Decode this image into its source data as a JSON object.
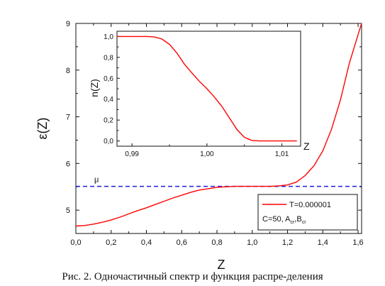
{
  "chart_data": [
    {
      "type": "line",
      "xlabel": "Z",
      "ylabel": "ε(Z)",
      "xlim": [
        0.0,
        1.62
      ],
      "ylim": [
        4.5,
        9.0
      ],
      "xticks": [
        "0,0",
        "0,2",
        "0,4",
        "0,6",
        "0,8",
        "1,0",
        "1,2",
        "1,4",
        "1,6"
      ],
      "yticks": [
        "5",
        "6",
        "7",
        "8",
        "9"
      ],
      "series": [
        {
          "name": "T=0.000001",
          "color": "#ff0000",
          "x": [
            0.0,
            0.05,
            0.1,
            0.15,
            0.2,
            0.25,
            0.3,
            0.35,
            0.4,
            0.45,
            0.5,
            0.55,
            0.6,
            0.65,
            0.7,
            0.75,
            0.8,
            0.85,
            0.9,
            0.95,
            1.0,
            1.05,
            1.1,
            1.15,
            1.2,
            1.25,
            1.3,
            1.35,
            1.4,
            1.45,
            1.5,
            1.55,
            1.6,
            1.62
          ],
          "y": [
            4.66,
            4.67,
            4.7,
            4.74,
            4.79,
            4.85,
            4.92,
            4.99,
            5.05,
            5.12,
            5.19,
            5.26,
            5.32,
            5.38,
            5.43,
            5.46,
            5.49,
            5.5,
            5.51,
            5.51,
            5.51,
            5.51,
            5.51,
            5.52,
            5.54,
            5.6,
            5.74,
            5.95,
            6.27,
            6.74,
            7.36,
            8.14,
            8.76,
            9.0
          ]
        }
      ],
      "hline": {
        "label": "μ",
        "y": 5.51,
        "color": "#1f1fd6"
      },
      "legend": {
        "position": "bottom-right",
        "entry": "T=0.000001",
        "note": "C=50, A",
        "note_sub1": "cr",
        "note_mid": ",B",
        "note_sub2": "cr"
      }
    },
    {
      "type": "line",
      "xlabel": "Z",
      "ylabel": "n(Z)",
      "xlim": [
        0.988,
        1.0125
      ],
      "ylim": [
        -0.05,
        1.05
      ],
      "xticks": [
        "0,99",
        "1,00",
        "1,01"
      ],
      "yticks": [
        "0,0",
        "0,2",
        "0,4",
        "0,6",
        "0,8",
        "1,0"
      ],
      "series": [
        {
          "color": "#ff0000",
          "x": [
            0.988,
            0.99,
            0.992,
            0.993,
            0.994,
            0.995,
            0.996,
            0.997,
            0.998,
            0.999,
            1.0,
            1.001,
            1.002,
            1.003,
            1.004,
            1.005,
            1.006,
            1.007,
            1.008,
            1.01,
            1.012
          ],
          "y": [
            1.0,
            1.0,
            1.0,
            0.995,
            0.975,
            0.925,
            0.84,
            0.735,
            0.65,
            0.57,
            0.5,
            0.42,
            0.33,
            0.22,
            0.11,
            0.035,
            0.005,
            0.0,
            0.0,
            0.0,
            0.0
          ]
        }
      ]
    }
  ],
  "caption": "Рис.  2.  Одночастичный спектр и функция распре-деления"
}
